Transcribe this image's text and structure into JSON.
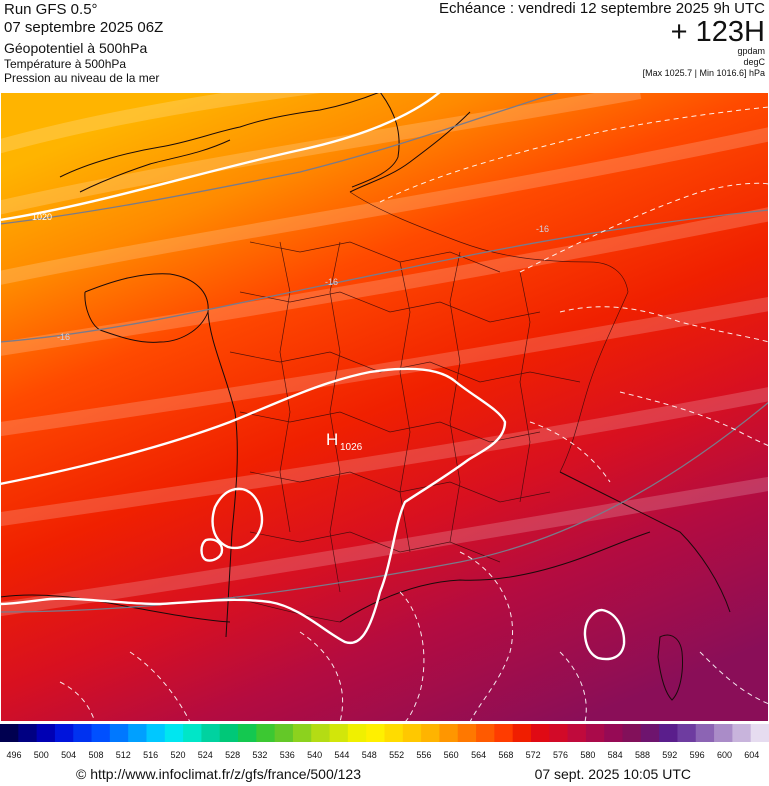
{
  "header": {
    "run": "Run GFS 0.5°",
    "date": "07 septembre 2025 06Z",
    "field1": "Géopotentiel à 500hPa",
    "field2": "Température à 500hPa",
    "field3": "Pression au niveau de la mer",
    "echeance": "Echéance : vendredi 12 septembre 2025 9h UTC",
    "horizon": "+ 123H",
    "unit1": "gpdam",
    "unit2": "degC",
    "minmax": "[Max 1025.7 | Min 1016.6] hPa"
  },
  "map": {
    "pressure_labels": [
      "1020",
      "1026"
    ],
    "high_label": "H",
    "temperature_labels": [
      "-16",
      "-16",
      "-16"
    ],
    "colors": {
      "yellow_orange": "#ffb400",
      "orange": "#ff6a00",
      "red": "#f22000",
      "crimson": "#c8103a",
      "purple": "#82105a"
    }
  },
  "colorscale": {
    "labels": [
      "496",
      "500",
      "504",
      "508",
      "512",
      "516",
      "520",
      "524",
      "528",
      "532",
      "536",
      "540",
      "544",
      "548",
      "552",
      "556",
      "560",
      "564",
      "568",
      "572",
      "576",
      "580",
      "584",
      "588",
      "592",
      "596",
      "600",
      "604"
    ],
    "colors": [
      "#000050",
      "#000082",
      "#0000b4",
      "#0014dc",
      "#0032f0",
      "#0050ff",
      "#0078ff",
      "#00a0ff",
      "#00c8ff",
      "#00e6f0",
      "#00e6c8",
      "#00d2a0",
      "#00c878",
      "#14c850",
      "#3cc832",
      "#64c828",
      "#8cd21e",
      "#b4dc14",
      "#d2e60a",
      "#f0f000",
      "#fff000",
      "#ffdc00",
      "#ffc800",
      "#ffb400",
      "#ff9600",
      "#ff7800",
      "#ff5a00",
      "#ff3c00",
      "#f01e00",
      "#e00a14",
      "#d20a28",
      "#c00a3c",
      "#aa0a4a",
      "#960a55",
      "#82105a",
      "#6e146e",
      "#5a1e8c",
      "#6e3ca0",
      "#8c64b4",
      "#aa8cc8",
      "#c8b4dc",
      "#e6dcf0"
    ]
  },
  "footer": {
    "url": "© http://www.infoclimat.fr/z/gfs/france/500/123",
    "generated": "07 sept. 2025 10:05 UTC"
  }
}
